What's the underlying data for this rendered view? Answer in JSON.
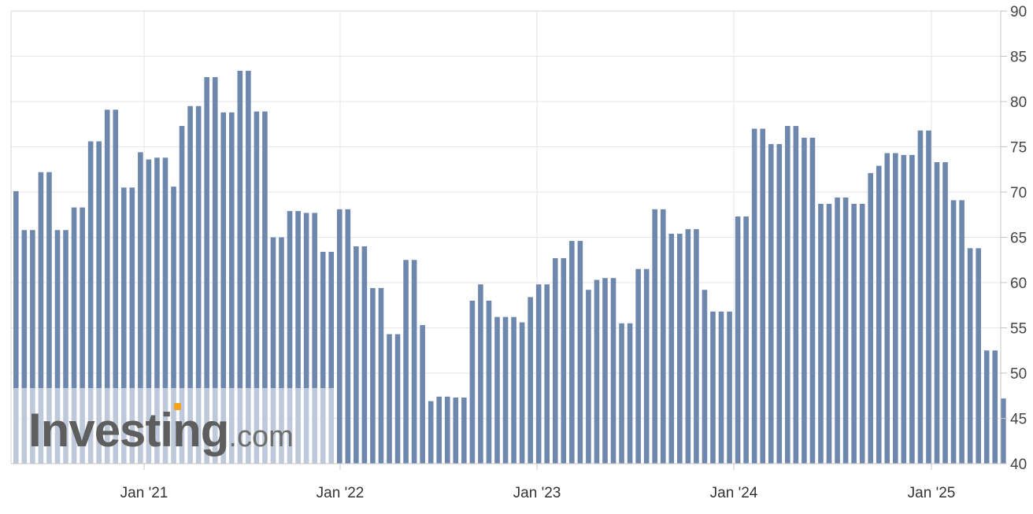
{
  "watermark": {
    "main": "Investing",
    "suffix": ".com",
    "accent_color": "#f4a21b"
  },
  "chart_data": {
    "type": "bar",
    "bar_color": "#6d87ad",
    "ylim": [
      40,
      90
    ],
    "y_ticks": [
      40,
      45,
      50,
      55,
      60,
      65,
      70,
      75,
      80,
      85,
      90
    ],
    "grid": true,
    "x_tick_labels": [
      "Jan '21",
      "Jan '22",
      "Jan '23",
      "Jan '24",
      "Jan '25"
    ],
    "values": [
      70.1,
      65.8,
      65.8,
      72.2,
      72.2,
      65.8,
      65.8,
      68.3,
      68.3,
      75.6,
      75.6,
      79.1,
      79.1,
      70.5,
      70.5,
      74.4,
      73.6,
      73.8,
      73.8,
      70.6,
      77.3,
      79.5,
      79.5,
      82.7,
      82.7,
      78.8,
      78.8,
      83.4,
      83.4,
      78.9,
      78.9,
      65.0,
      65.0,
      67.9,
      67.9,
      67.7,
      67.7,
      63.4,
      63.4,
      68.1,
      68.1,
      64.0,
      64.0,
      59.4,
      59.4,
      54.3,
      54.3,
      62.5,
      62.5,
      55.3,
      46.9,
      47.4,
      47.4,
      47.3,
      47.3,
      58.0,
      59.8,
      58.0,
      56.2,
      56.2,
      56.2,
      55.6,
      58.4,
      59.8,
      59.8,
      62.7,
      62.7,
      64.6,
      64.6,
      59.2,
      60.3,
      60.5,
      60.5,
      55.5,
      55.5,
      61.5,
      61.5,
      68.1,
      68.1,
      65.4,
      65.4,
      65.9,
      65.9,
      59.2,
      56.8,
      56.8,
      56.8,
      67.3,
      67.3,
      77.0,
      77.0,
      75.3,
      75.3,
      77.3,
      77.3,
      76.0,
      76.0,
      68.7,
      68.7,
      69.4,
      69.4,
      68.7,
      68.7,
      72.1,
      72.9,
      74.3,
      74.3,
      74.1,
      74.1,
      76.8,
      76.8,
      73.3,
      73.3,
      69.1,
      69.1,
      63.8,
      63.8,
      52.5,
      52.5,
      47.2
    ]
  }
}
